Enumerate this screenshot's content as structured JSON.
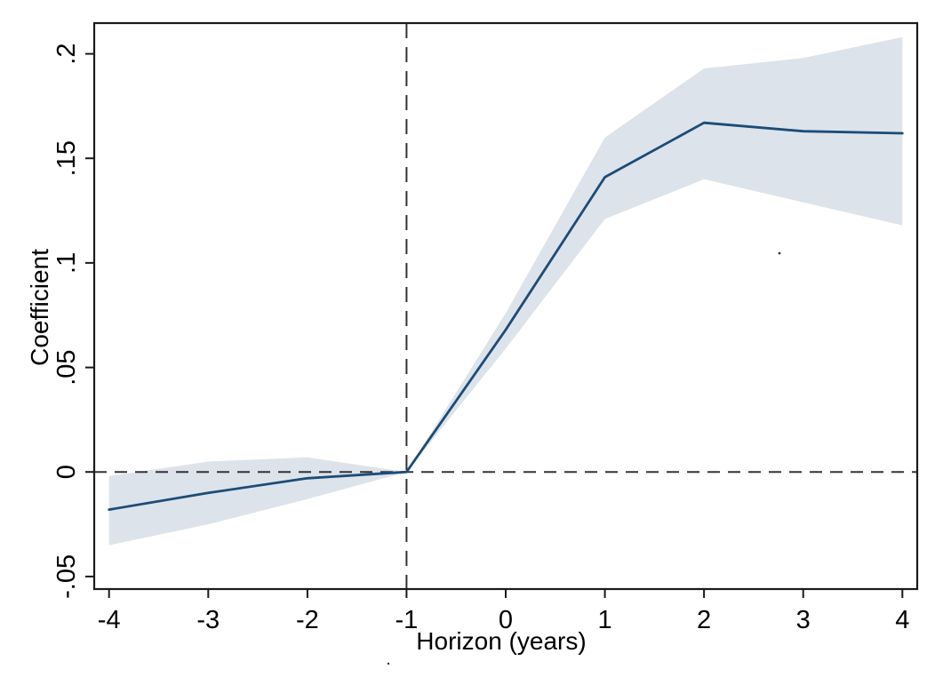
{
  "chart_data": {
    "type": "line",
    "title": "",
    "xlabel": "Horizon (years)",
    "ylabel": "Coefficient",
    "x": [
      -4,
      -3,
      -2,
      -1,
      0,
      1,
      2,
      3,
      4
    ],
    "series": [
      {
        "name": "coefficient",
        "values": [
          -0.018,
          -0.01,
          -0.003,
          0,
          0.068,
          0.141,
          0.167,
          0.163,
          0.162
        ]
      },
      {
        "name": "ci_upper",
        "values": [
          -0.002,
          0.005,
          0.007,
          0,
          0.076,
          0.16,
          0.193,
          0.198,
          0.208
        ]
      },
      {
        "name": "ci_lower",
        "values": [
          -0.035,
          -0.025,
          -0.013,
          0,
          0.059,
          0.121,
          0.14,
          0.129,
          0.118
        ]
      }
    ],
    "x_ticks": [
      {
        "value": -4,
        "label": "-4"
      },
      {
        "value": -3,
        "label": "-3"
      },
      {
        "value": -2,
        "label": "-2"
      },
      {
        "value": -1,
        "label": "-1"
      },
      {
        "value": 0,
        "label": "0"
      },
      {
        "value": 1,
        "label": "1"
      },
      {
        "value": 2,
        "label": "2"
      },
      {
        "value": 3,
        "label": "3"
      },
      {
        "value": 4,
        "label": "4"
      }
    ],
    "y_ticks": [
      {
        "value": -0.05,
        "label": "-.05"
      },
      {
        "value": 0,
        "label": "0"
      },
      {
        "value": 0.05,
        "label": ".05"
      },
      {
        "value": 0.1,
        "label": ".1"
      },
      {
        "value": 0.15,
        "label": ".15"
      },
      {
        "value": 0.2,
        "label": ".2"
      }
    ],
    "xlim": [
      -4.15,
      4.15
    ],
    "ylim": [
      -0.056,
      0.2147
    ],
    "reference_lines": {
      "horizontal_y": 0,
      "vertical_x": -1
    },
    "grid": false,
    "legend": "none",
    "colors": {
      "line": "#1c4c77",
      "band": "#dde3eb",
      "reference": "#333333",
      "axis": "#1a1a1a"
    }
  }
}
